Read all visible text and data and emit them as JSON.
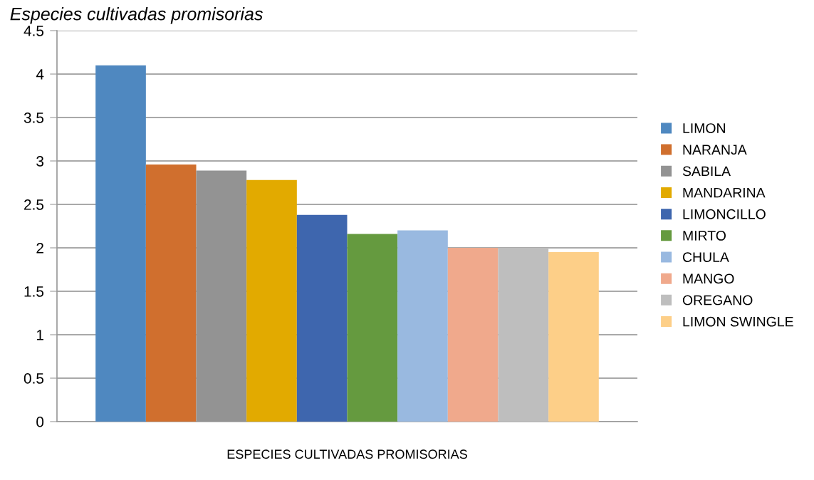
{
  "chart_data": {
    "type": "bar",
    "title": "Especies cultivadas promisorias",
    "categories": [
      "ESPECIES CULTIVADAS PROMISORIAS"
    ],
    "series": [
      {
        "name": "LIMON",
        "color": "#4f88c0",
        "values": [
          4.1
        ]
      },
      {
        "name": "NARANJA",
        "color": "#d06f2e",
        "values": [
          2.96
        ]
      },
      {
        "name": "SABILA",
        "color": "#939393",
        "values": [
          2.89
        ]
      },
      {
        "name": "MANDARINA",
        "color": "#e2aa00",
        "values": [
          2.78
        ]
      },
      {
        "name": "LIMONCILLO",
        "color": "#3e66ae",
        "values": [
          2.38
        ]
      },
      {
        "name": "MIRTO",
        "color": "#659a3f",
        "values": [
          2.16
        ]
      },
      {
        "name": "CHULA",
        "color": "#99b9e0",
        "values": [
          2.2
        ]
      },
      {
        "name": "MANGO",
        "color": "#f0a98c",
        "values": [
          2.0
        ]
      },
      {
        "name": "OREGANO",
        "color": "#bebebe",
        "values": [
          2.0
        ]
      },
      {
        "name": "LIMON SWINGLE",
        "color": "#fdcf88",
        "values": [
          1.95
        ]
      }
    ],
    "ylim": [
      0,
      4.5
    ],
    "yticks": [
      0,
      0.5,
      1,
      1.5,
      2,
      2.5,
      3,
      3.5,
      4,
      4.5
    ],
    "grid": "y",
    "legend": "right"
  }
}
